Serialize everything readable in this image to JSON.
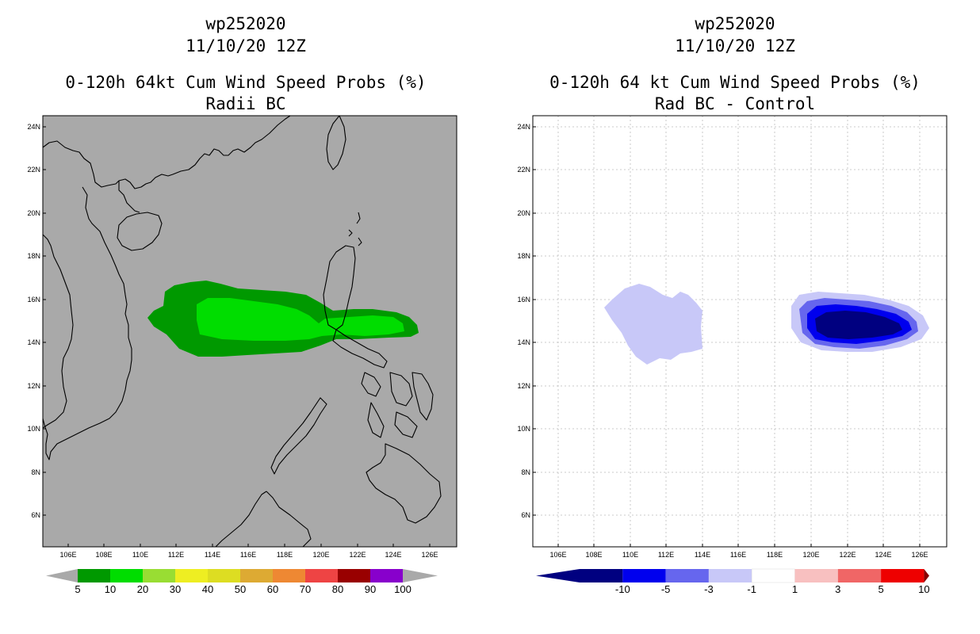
{
  "left_panel": {
    "storm_id": "wp252020",
    "date": "11/10/20 12Z",
    "product": "0-120h 64kt Cum Wind Speed Probs (%)",
    "subtitle": "Radii BC",
    "background_color": "#a9a9a9",
    "colorbar": {
      "colors": [
        "#009900",
        "#00dd00",
        "#99dd33",
        "#eeee22",
        "#dddd22",
        "#ddaa33",
        "#ee8833",
        "#ee4444",
        "#990000",
        "#8800cc"
      ],
      "labels": [
        "5",
        "10",
        "20",
        "30",
        "40",
        "50",
        "60",
        "70",
        "80",
        "90",
        "100"
      ]
    }
  },
  "right_panel": {
    "storm_id": "wp252020",
    "date": "11/10/20 12Z",
    "product": "0-120h 64 kt Cum Wind Speed Probs (%)",
    "subtitle": "Rad BC - Control",
    "background_color": "#ffffff",
    "colorbar": {
      "colors": [
        "#000080",
        "#0000ee",
        "#6666ee",
        "#c8c8f8",
        "#ffffff",
        "#f8c0c0",
        "#f06666",
        "#ee0000"
      ],
      "labels": [
        "-10",
        "-5",
        "-3",
        "-1",
        "1",
        "3",
        "5",
        "10"
      ]
    }
  },
  "axes": {
    "lon_labels": [
      "106E",
      "108E",
      "110E",
      "112E",
      "114E",
      "116E",
      "118E",
      "120E",
      "122E",
      "124E",
      "126E"
    ],
    "lat_labels": [
      "24N",
      "22N",
      "20N",
      "18N",
      "16N",
      "14N",
      "12N",
      "10N",
      "8N",
      "6N"
    ]
  }
}
